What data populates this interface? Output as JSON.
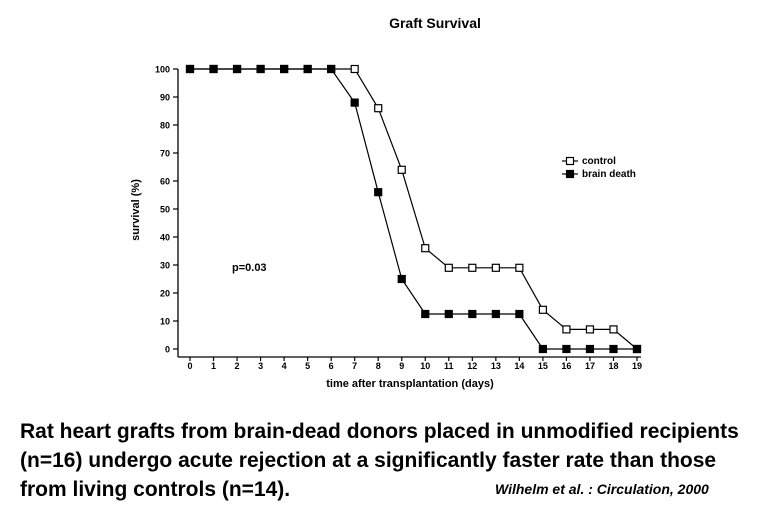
{
  "chart_data": {
    "type": "line",
    "title": "Graft Survival",
    "xlabel": "time after transplantation (days)",
    "ylabel": "survival (%)",
    "xlim": [
      0,
      19
    ],
    "ylim": [
      0,
      100
    ],
    "x_ticks": [
      "0",
      "1",
      "2",
      "3",
      "4",
      "5",
      "6",
      "7",
      "8",
      "9",
      "10",
      "11",
      "12",
      "13",
      "14",
      "15",
      "16",
      "17",
      "18",
      "19"
    ],
    "y_ticks": [
      "0",
      "10",
      "20",
      "30",
      "40",
      "50",
      "60",
      "70",
      "80",
      "90",
      "100"
    ],
    "grid": false,
    "legend_position": "top-right",
    "series": [
      {
        "name": "control",
        "marker": "open-square",
        "x": [
          0,
          1,
          2,
          3,
          4,
          5,
          6,
          7,
          8,
          9,
          10,
          11,
          12,
          13,
          14,
          15,
          16,
          17,
          18,
          19
        ],
        "y": [
          100,
          100,
          100,
          100,
          100,
          100,
          100,
          100,
          86,
          64,
          36,
          29,
          29,
          29,
          29,
          14,
          7,
          7,
          7,
          0
        ]
      },
      {
        "name": "brain death",
        "marker": "filled-square",
        "x": [
          0,
          1,
          2,
          3,
          4,
          5,
          6,
          7,
          8,
          9,
          10,
          11,
          12,
          13,
          14,
          15,
          16,
          17,
          18,
          19
        ],
        "y": [
          100,
          100,
          100,
          100,
          100,
          100,
          100,
          88,
          56,
          25,
          12.5,
          12.5,
          12.5,
          12.5,
          12.5,
          0,
          0,
          0,
          0,
          0
        ]
      }
    ],
    "annotations": [
      "p=0.03"
    ]
  },
  "caption": "Rat heart grafts from brain-dead donors placed in unmodified recipients (n=16) undergo acute rejection at a significantly faster rate than those from living controls (n=14).",
  "citation": "Wilhelm et al. : Circulation, 2000"
}
